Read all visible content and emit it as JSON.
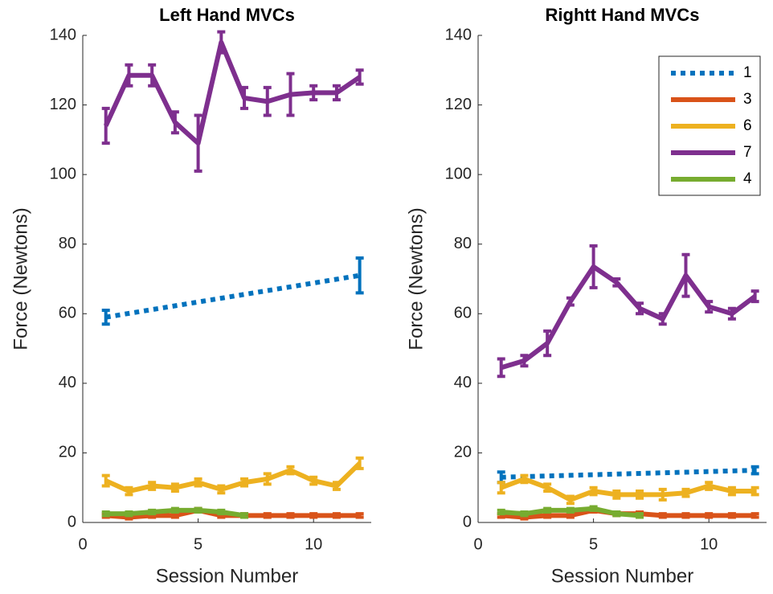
{
  "chart_data": [
    {
      "type": "line",
      "title": "Left Hand MVCs",
      "x_label": "Session Number",
      "y_label": "Force (Newtons)",
      "xlim": [
        0,
        12.5
      ],
      "xticks": [
        0,
        5,
        10
      ],
      "ylim": [
        0,
        140
      ],
      "yticks": [
        0,
        20,
        40,
        60,
        80,
        100,
        120,
        140
      ],
      "series": [
        {
          "color": "#0072BD",
          "line_style": "dotted",
          "x": [
            1,
            12
          ],
          "values": [
            59,
            71
          ],
          "errors": [
            2,
            5
          ]
        },
        {
          "color": "#D95319",
          "line_style": "solid",
          "x": [
            1,
            2,
            3,
            4,
            5,
            6,
            7,
            8,
            9,
            10,
            11,
            12
          ],
          "values": [
            2,
            1.5,
            2,
            2,
            3.5,
            2,
            2,
            2,
            2,
            2,
            2,
            2
          ],
          "errors": [
            0.5,
            0.5,
            0.5,
            0.5,
            0.5,
            0.5,
            0.5,
            0.5,
            0.5,
            0.5,
            0.5,
            0.5
          ]
        },
        {
          "color": "#EDB120",
          "line_style": "solid",
          "x": [
            1,
            2,
            3,
            4,
            5,
            6,
            7,
            8,
            9,
            10,
            11,
            12
          ],
          "values": [
            12,
            9,
            10.5,
            10,
            11.5,
            9.5,
            11.5,
            12.5,
            15,
            12,
            10.5,
            17
          ],
          "errors": [
            1.5,
            1,
            1,
            1,
            1,
            1,
            1,
            1.5,
            1,
            1,
            1,
            1.5
          ]
        },
        {
          "color": "#7E2F8E",
          "line_style": "solid",
          "x": [
            1,
            2,
            3,
            4,
            5,
            6,
            7,
            8,
            9,
            10,
            11,
            12
          ],
          "values": [
            114,
            128.5,
            128.5,
            115,
            109,
            138,
            122,
            121,
            123,
            123.5,
            123.5,
            128
          ],
          "errors": [
            5,
            3,
            3,
            3,
            8,
            3,
            3,
            4,
            6,
            2,
            2,
            2
          ]
        },
        {
          "color": "#77AC30",
          "line_style": "solid",
          "x": [
            1,
            2,
            3,
            4,
            5,
            6,
            7
          ],
          "values": [
            2.5,
            2.5,
            3,
            3.5,
            3.5,
            3,
            2
          ],
          "errors": [
            0.5,
            0.5,
            0.5,
            0.5,
            0.5,
            0.5,
            0.5
          ]
        }
      ]
    },
    {
      "type": "line",
      "title": "Rightt Hand MVCs",
      "x_label": "Session Number",
      "y_label": "Force (Newtons)",
      "xlim": [
        0,
        12.5
      ],
      "xticks": [
        0,
        5,
        10
      ],
      "ylim": [
        0,
        140
      ],
      "yticks": [
        0,
        20,
        40,
        60,
        80,
        100,
        120,
        140
      ],
      "legend": "northeast",
      "series": [
        {
          "name": "1",
          "color": "#0072BD",
          "line_style": "dotted",
          "x": [
            1,
            12
          ],
          "values": [
            13,
            15
          ],
          "errors": [
            1.5,
            1
          ]
        },
        {
          "name": "3",
          "color": "#D95319",
          "line_style": "solid",
          "x": [
            1,
            2,
            3,
            4,
            5,
            6,
            7,
            8,
            9,
            10,
            11,
            12
          ],
          "values": [
            2,
            1.5,
            2,
            2,
            3.5,
            2.5,
            2.5,
            2,
            2,
            2,
            2,
            2
          ],
          "errors": [
            0.5,
            0.5,
            0.5,
            0.5,
            0.5,
            0.5,
            0.5,
            0.5,
            0.5,
            0.5,
            0.5,
            0.5
          ]
        },
        {
          "name": "6",
          "color": "#EDB120",
          "line_style": "solid",
          "x": [
            1,
            2,
            3,
            4,
            5,
            6,
            7,
            8,
            9,
            10,
            11,
            12
          ],
          "values": [
            10,
            12.5,
            10,
            6.5,
            9,
            8,
            8,
            8,
            8.5,
            10.5,
            9,
            9
          ],
          "errors": [
            1.5,
            1,
            1,
            1,
            1,
            1,
            1,
            1.5,
            1,
            1,
            1,
            1
          ]
        },
        {
          "name": "7",
          "color": "#7E2F8E",
          "line_style": "solid",
          "x": [
            1,
            2,
            3,
            4,
            5,
            6,
            7,
            8,
            9,
            10,
            11,
            12
          ],
          "values": [
            44.5,
            46.5,
            51.5,
            63.5,
            73.5,
            69,
            61.5,
            58.5,
            71,
            62,
            60,
            65
          ],
          "errors": [
            2.5,
            1.5,
            3.5,
            1,
            6,
            1,
            1.5,
            1.5,
            6,
            1.5,
            1.5,
            1.5
          ]
        },
        {
          "name": "4",
          "color": "#77AC30",
          "line_style": "solid",
          "x": [
            1,
            2,
            3,
            4,
            5,
            6,
            7
          ],
          "values": [
            3,
            2.5,
            3.5,
            3.5,
            4,
            2.5,
            2
          ],
          "errors": [
            0.5,
            0.5,
            0.5,
            0.5,
            0.5,
            0.5,
            0.5
          ]
        }
      ]
    }
  ]
}
